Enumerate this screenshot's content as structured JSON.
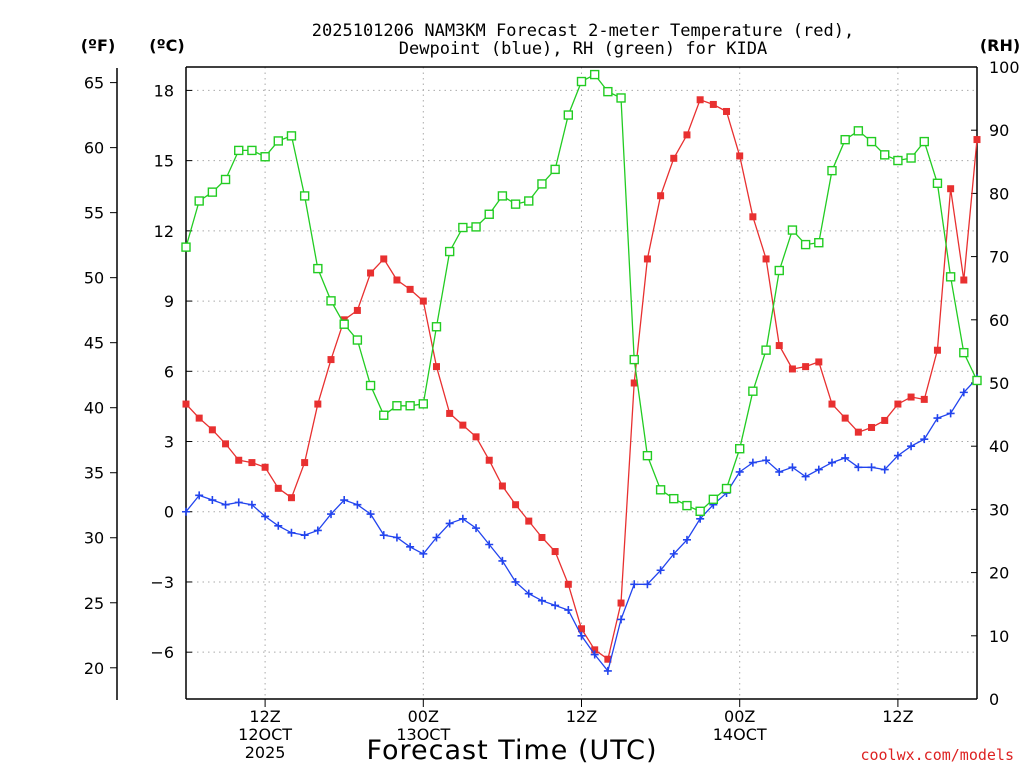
{
  "chart_data": {
    "type": "line",
    "title": [
      "2025101206 NAM3KM Forecast 2-meter Temperature (red),",
      "Dewpoint (blue), RH (green) for KIDA"
    ],
    "xlabel": "Forecast Time (UTC)",
    "credit": "coolwx.com/models",
    "units": {
      "f": "(ºF)",
      "c": "(ºC)",
      "rh": "(RH)"
    },
    "x_ticks": [
      {
        "x": 6,
        "lines": [
          "12Z",
          "12OCT",
          "2025"
        ]
      },
      {
        "x": 18,
        "lines": [
          "00Z",
          "13OCT"
        ]
      },
      {
        "x": 30,
        "lines": [
          "12Z"
        ]
      },
      {
        "x": 42,
        "lines": [
          "00Z",
          "14OCT"
        ]
      },
      {
        "x": 54,
        "lines": [
          "12Z"
        ]
      }
    ],
    "xlim": [
      0,
      60
    ],
    "ylim_c": [
      -8,
      19
    ],
    "ylim_rh": [
      0,
      100
    ],
    "c_ticks": [
      "18",
      "15",
      "12",
      "9",
      "6",
      "3",
      "0",
      "−3",
      "−6"
    ],
    "c_tick_values": [
      18,
      15,
      12,
      9,
      6,
      3,
      0,
      -3,
      -6
    ],
    "f_ticks": [
      "65",
      "60",
      "55",
      "50",
      "45",
      "40",
      "35",
      "30",
      "25",
      "20"
    ],
    "f_tick_values": [
      65,
      60,
      55,
      50,
      45,
      40,
      35,
      30,
      25,
      20
    ],
    "rh_ticks": [
      "100",
      "90",
      "80",
      "70",
      "60",
      "50",
      "40",
      "30",
      "20",
      "10",
      "0"
    ],
    "rh_tick_values": [
      100,
      90,
      80,
      70,
      60,
      50,
      40,
      30,
      20,
      10,
      0
    ],
    "series": [
      {
        "name": "Temperature",
        "axis": "c",
        "color": "#e83030",
        "marker": "filled-square",
        "values": [
          4.6,
          4.0,
          3.5,
          2.9,
          2.2,
          2.1,
          1.9,
          1.0,
          0.6,
          2.1,
          4.6,
          6.5,
          8.2,
          8.6,
          10.2,
          10.8,
          9.9,
          9.5,
          9.0,
          6.2,
          4.2,
          3.7,
          3.2,
          2.2,
          1.1,
          0.3,
          -0.4,
          -1.1,
          -1.7,
          -3.1,
          -5.0,
          -5.9,
          -6.3,
          -3.9,
          5.5,
          10.8,
          13.5,
          15.1,
          16.1,
          17.6,
          17.4,
          17.1,
          15.2,
          12.6,
          10.8,
          7.1,
          6.1,
          6.2,
          6.4,
          4.6,
          4.0,
          3.4,
          3.6,
          3.9,
          4.6,
          4.9,
          4.8,
          6.9,
          13.8,
          9.9,
          15.9
        ]
      },
      {
        "name": "Dewpoint",
        "axis": "c",
        "color": "#2244ee",
        "marker": "plus",
        "values": [
          0.0,
          0.7,
          0.5,
          0.3,
          0.4,
          0.3,
          -0.2,
          -0.6,
          -0.9,
          -1.0,
          -0.8,
          -0.1,
          0.5,
          0.3,
          -0.1,
          -1.0,
          -1.1,
          -1.5,
          -1.8,
          -1.1,
          -0.5,
          -0.3,
          -0.7,
          -1.4,
          -2.1,
          -3.0,
          -3.5,
          -3.8,
          -4.0,
          -4.2,
          -5.3,
          -6.1,
          -6.8,
          -4.6,
          -3.1,
          -3.1,
          -2.5,
          -1.8,
          -1.2,
          -0.3,
          0.3,
          0.8,
          1.7,
          2.1,
          2.2,
          1.7,
          1.9,
          1.5,
          1.8,
          2.1,
          2.3,
          1.9,
          1.9,
          1.8,
          2.4,
          2.8,
          3.1,
          4.0,
          4.2,
          5.1,
          5.7
        ]
      },
      {
        "name": "RH",
        "axis": "rh",
        "color": "#22cc22",
        "marker": "open-square",
        "values": [
          71.5,
          78.8,
          80.2,
          82.2,
          86.8,
          86.8,
          85.8,
          88.3,
          89.1,
          79.6,
          68.1,
          63.0,
          59.3,
          56.8,
          49.6,
          44.9,
          46.4,
          46.4,
          46.7,
          58.9,
          70.8,
          74.6,
          74.7,
          76.7,
          79.6,
          78.3,
          78.8,
          81.5,
          83.8,
          92.4,
          97.7,
          98.8,
          96.1,
          95.1,
          53.7,
          38.5,
          33.1,
          31.7,
          30.6,
          29.7,
          31.6,
          33.3,
          39.6,
          48.7,
          55.2,
          67.8,
          74.2,
          71.9,
          72.2,
          83.6,
          88.5,
          89.9,
          88.2,
          86.1,
          85.2,
          85.6,
          88.2,
          81.6,
          66.8,
          54.8,
          50.4
        ]
      }
    ]
  }
}
